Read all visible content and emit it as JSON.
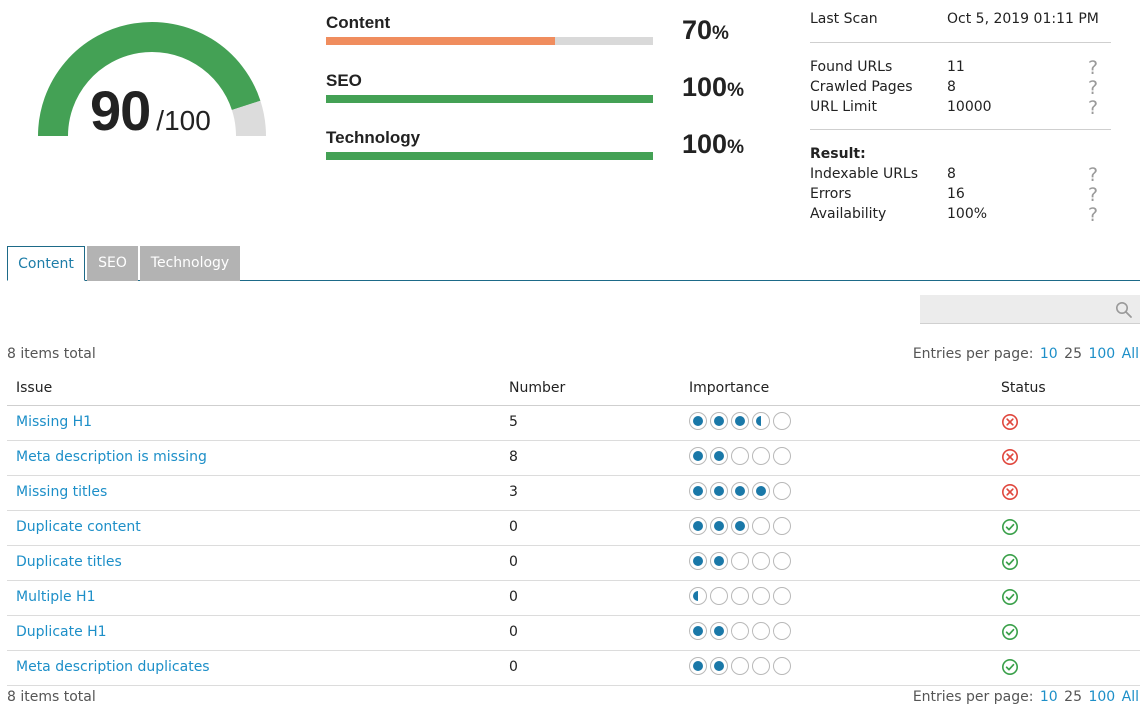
{
  "score": {
    "value": "90",
    "denominator": "/100",
    "fraction": 0.9,
    "color_good": "#44a155",
    "color_remaining": "#dcdcdc"
  },
  "categories": [
    {
      "name": "Content",
      "percent_value": 70,
      "percent_label": "70",
      "percent_sign": "%",
      "color": "#f08d5e"
    },
    {
      "name": "SEO",
      "percent_value": 100,
      "percent_label": "100",
      "percent_sign": "%",
      "color": "#44a155"
    },
    {
      "name": "Technology",
      "percent_value": 100,
      "percent_label": "100",
      "percent_sign": "%",
      "color": "#44a155"
    }
  ],
  "scan": {
    "last_scan_label": "Last Scan",
    "last_scan_value": "Oct 5, 2019 01:11 PM",
    "found_urls_label": "Found URLs",
    "found_urls_value": "11",
    "crawled_pages_label": "Crawled Pages",
    "crawled_pages_value": "8",
    "url_limit_label": "URL Limit",
    "url_limit_value": "10000",
    "result_label": "Result:",
    "indexable_urls_label": "Indexable URLs",
    "indexable_urls_value": "8",
    "errors_label": "Errors",
    "errors_value": "16",
    "availability_label": "Availability",
    "availability_value": "100%",
    "help_glyph": "?"
  },
  "tabs": [
    {
      "label": "Content",
      "active": true
    },
    {
      "label": "SEO",
      "active": false
    },
    {
      "label": "Technology",
      "active": false
    }
  ],
  "search": {
    "placeholder": "",
    "icon": "search-icon"
  },
  "list": {
    "items_total": "8 items total",
    "entries_per_page_label": "Entries per page:",
    "page_sizes": [
      "10",
      "25",
      "100",
      "All"
    ],
    "current_page_size": "25"
  },
  "table": {
    "headers": {
      "issue": "Issue",
      "number": "Number",
      "importance": "Importance",
      "status": "Status"
    },
    "rows": [
      {
        "issue": "Missing H1",
        "number": "5",
        "importance": 3.5,
        "status": "error"
      },
      {
        "issue": "Meta description is missing",
        "number": "8",
        "importance": 2,
        "status": "error"
      },
      {
        "issue": "Missing titles",
        "number": "3",
        "importance": 4,
        "status": "error"
      },
      {
        "issue": "Duplicate content",
        "number": "0",
        "importance": 3,
        "status": "ok"
      },
      {
        "issue": "Duplicate titles",
        "number": "0",
        "importance": 2,
        "status": "ok"
      },
      {
        "issue": "Multiple H1",
        "number": "0",
        "importance": 0.5,
        "status": "ok"
      },
      {
        "issue": "Duplicate H1",
        "number": "0",
        "importance": 2,
        "status": "ok"
      },
      {
        "issue": "Meta description duplicates",
        "number": "0",
        "importance": 2,
        "status": "ok"
      }
    ],
    "status_colors": {
      "error": "#e0473d",
      "ok": "#3aa04a"
    },
    "importance_color": "#1a78a8"
  }
}
